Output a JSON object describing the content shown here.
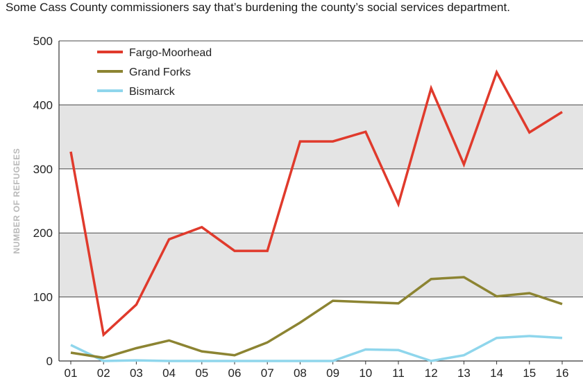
{
  "subtitle": "Some Cass County commissioners say that’s burdening the county’s social services department.",
  "chart_data": {
    "type": "line",
    "ylabel": "NUMBER OF REFUGEES",
    "xlabel": "",
    "ylim": [
      0,
      500
    ],
    "yticks": [
      0,
      100,
      200,
      300,
      400,
      500
    ],
    "categories": [
      "01",
      "02",
      "03",
      "04",
      "05",
      "06",
      "07",
      "08",
      "09",
      "10",
      "11",
      "12",
      "13",
      "14",
      "15",
      "16"
    ],
    "grid": "alternating gray bands at 100-200 and 300-400",
    "legend_position": "top-left",
    "series": [
      {
        "name": "Fargo-Moorhead",
        "color": "#e03a2c",
        "values": [
          327,
          41,
          88,
          190,
          209,
          172,
          172,
          343,
          343,
          358,
          245,
          426,
          307,
          451,
          357,
          389
        ]
      },
      {
        "name": "Grand Forks",
        "color": "#8c8432",
        "values": [
          13,
          5,
          20,
          32,
          15,
          9,
          29,
          60,
          94,
          92,
          90,
          128,
          131,
          101,
          106,
          89
        ]
      },
      {
        "name": "Bismarck",
        "color": "#8fd6ec",
        "values": [
          25,
          0,
          1,
          0,
          0,
          0,
          0,
          0,
          0,
          18,
          17,
          0,
          9,
          36,
          39,
          36
        ]
      }
    ]
  }
}
